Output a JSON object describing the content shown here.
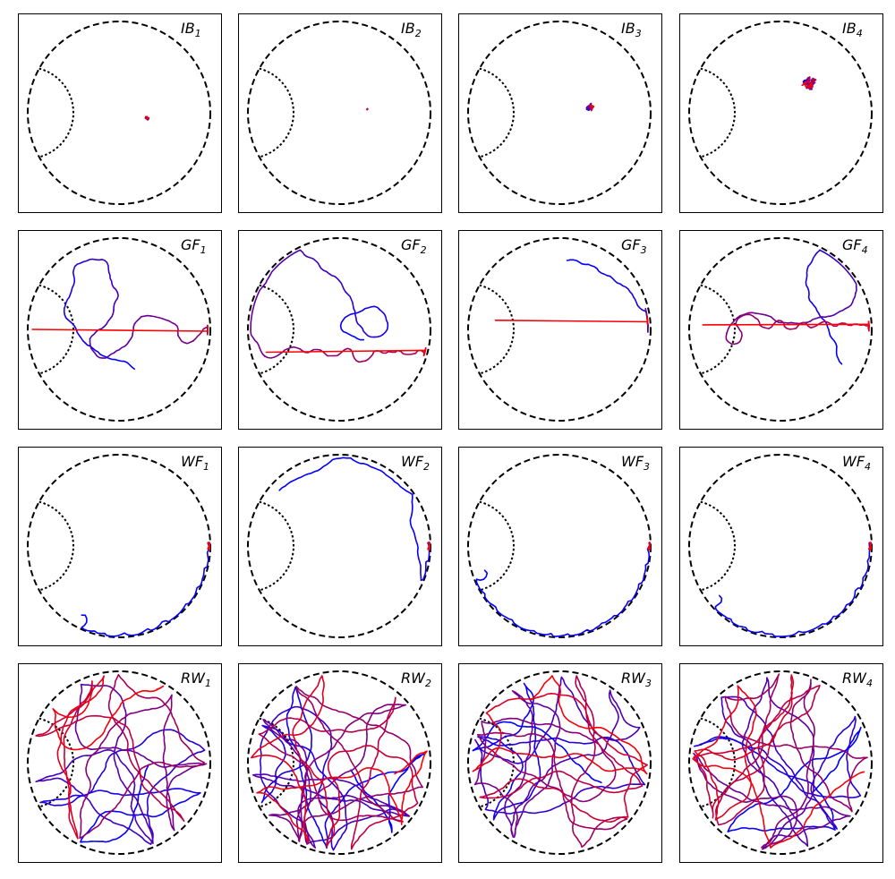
{
  "chart_data": {
    "type": "trajectory-grid",
    "axes_visible": false,
    "colors": {
      "start": "#0000ff",
      "end": "#ff0000",
      "arena": "#000000"
    },
    "row_groups": [
      "IB",
      "GF",
      "WF",
      "RW"
    ],
    "panels": [
      {
        "group": "IB",
        "label_main": "IB",
        "label_sub": "1",
        "behavior": "immobile",
        "extent": 0.04,
        "center": [
          0.31,
          -0.06
        ],
        "steps": 60,
        "seed": 11
      },
      {
        "group": "IB",
        "label_main": "IB",
        "label_sub": "2",
        "behavior": "immobile",
        "extent": 0.01,
        "center": [
          0.31,
          0.04
        ],
        "steps": 30,
        "seed": 12
      },
      {
        "group": "IB",
        "label_main": "IB",
        "label_sub": "3",
        "behavior": "immobile",
        "extent": 0.06,
        "center": [
          0.35,
          0.06
        ],
        "steps": 80,
        "seed": 13
      },
      {
        "group": "IB",
        "label_main": "IB",
        "label_sub": "4",
        "behavior": "immobile",
        "extent": 0.12,
        "center": [
          0.32,
          0.32
        ],
        "steps": 120,
        "seed": 14
      },
      {
        "group": "GF",
        "label_main": "GF",
        "label_sub": "1",
        "behavior": "goal-finding",
        "start": [
          0.2,
          -0.45
        ],
        "end": [
          -0.95,
          0.0
        ],
        "steps": 260,
        "seed": 21
      },
      {
        "group": "GF",
        "label_main": "GF",
        "label_sub": "2",
        "behavior": "goal-finding",
        "start": [
          0.3,
          -0.1
        ],
        "end": [
          -0.8,
          -0.25
        ],
        "steps": 260,
        "seed": 22
      },
      {
        "group": "GF",
        "label_main": "GF",
        "label_sub": "3",
        "behavior": "goal-finding",
        "start": [
          0.05,
          0.75
        ],
        "end": [
          -0.7,
          0.1
        ],
        "steps": 220,
        "seed": 23
      },
      {
        "group": "GF",
        "label_main": "GF",
        "label_sub": "4",
        "behavior": "goal-finding",
        "start": [
          0.7,
          -0.4
        ],
        "end": [
          -0.85,
          0.05
        ],
        "steps": 260,
        "seed": 24
      },
      {
        "group": "WF",
        "label_main": "WF",
        "label_sub": "1",
        "behavior": "wall-following",
        "steps": 900,
        "seed": 31
      },
      {
        "group": "WF",
        "label_main": "WF",
        "label_sub": "2",
        "behavior": "wall-following",
        "steps": 900,
        "seed": 32
      },
      {
        "group": "WF",
        "label_main": "WF",
        "label_sub": "3",
        "behavior": "wall-following",
        "steps": 1100,
        "seed": 33
      },
      {
        "group": "WF",
        "label_main": "WF",
        "label_sub": "4",
        "behavior": "wall-following",
        "steps": 800,
        "seed": 34
      },
      {
        "group": "RW",
        "label_main": "RW",
        "label_sub": "1",
        "behavior": "random-walk",
        "steps": 900,
        "seed": 41
      },
      {
        "group": "RW",
        "label_main": "RW",
        "label_sub": "2",
        "behavior": "random-walk",
        "steps": 1300,
        "seed": 42
      },
      {
        "group": "RW",
        "label_main": "RW",
        "label_sub": "3",
        "behavior": "random-walk",
        "steps": 1100,
        "seed": 43
      },
      {
        "group": "RW",
        "label_main": "RW",
        "label_sub": "4",
        "behavior": "random-walk",
        "steps": 1200,
        "seed": 44
      }
    ]
  }
}
